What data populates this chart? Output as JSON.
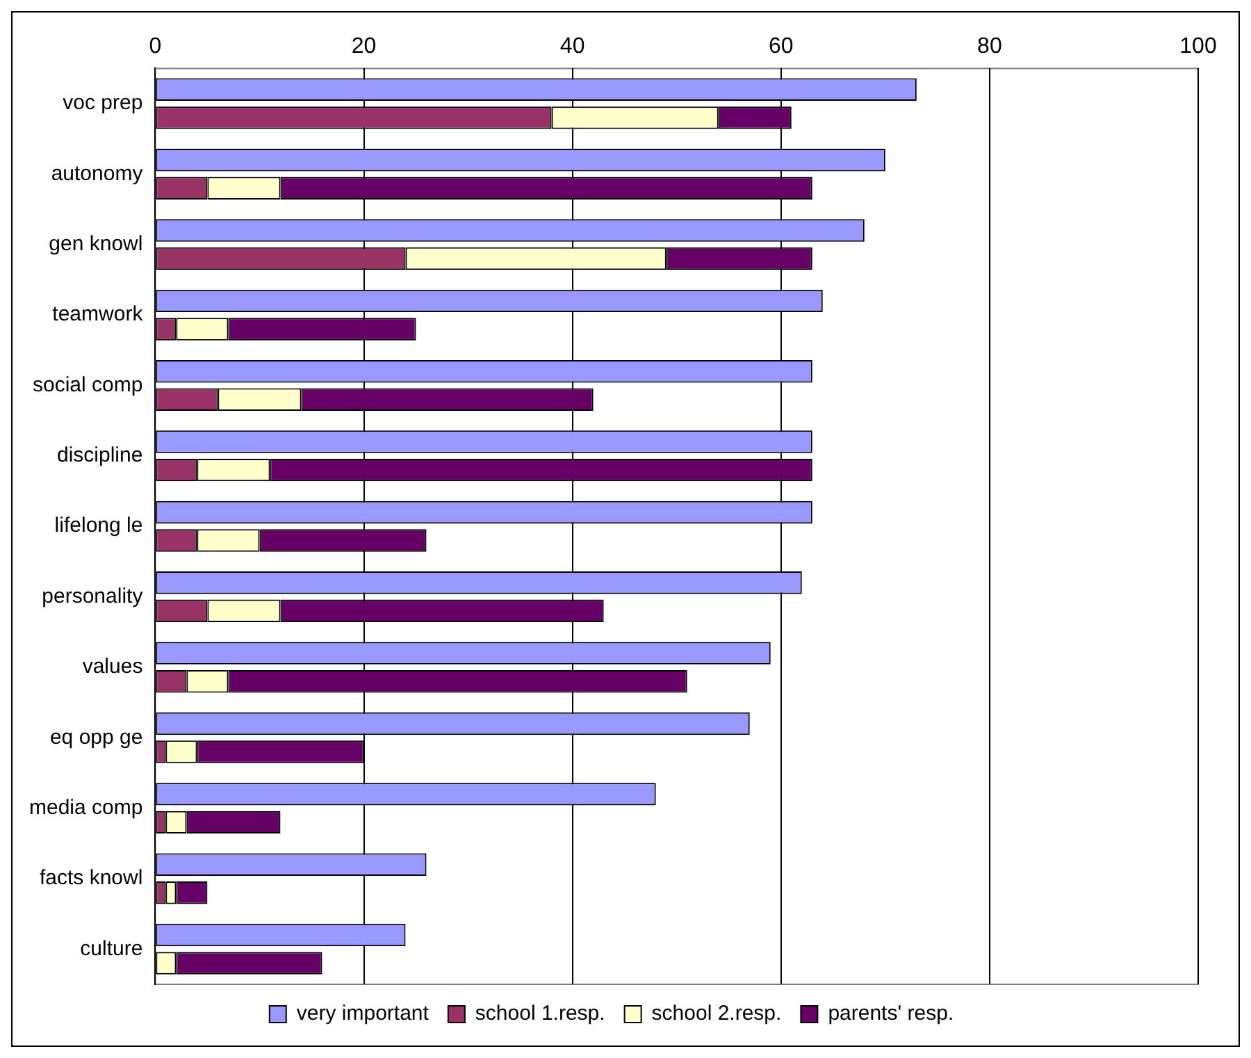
{
  "chart_data": {
    "type": "bar",
    "orientation": "horizontal",
    "categories": [
      "voc prep",
      "autonomy",
      "gen knowl",
      "teamwork",
      "social comp",
      "discipline",
      "lifelong le",
      "personality",
      "values",
      "eq opp ge",
      "media comp",
      "facts knowl",
      "culture"
    ],
    "series": [
      {
        "name": "very important",
        "color": "#9999ff",
        "values": [
          73,
          70,
          68,
          64,
          63,
          63,
          63,
          62,
          59,
          57,
          48,
          26,
          24
        ]
      },
      {
        "name": "school 1.resp.",
        "color": "#993366",
        "base": [
          0,
          0,
          0,
          0,
          0,
          0,
          0,
          0,
          0,
          0,
          0,
          0,
          null
        ],
        "values": [
          38,
          5,
          24,
          2,
          6,
          4,
          4,
          5,
          3,
          1,
          1,
          1,
          null
        ]
      },
      {
        "name": "school 2.resp.",
        "color": "#ffffcc",
        "base": [
          38,
          5,
          24,
          2,
          6,
          4,
          4,
          5,
          3,
          1,
          1,
          1,
          0
        ],
        "values": [
          16,
          7,
          25,
          5,
          8,
          7,
          6,
          7,
          4,
          3,
          2,
          1,
          2
        ]
      },
      {
        "name": "parents' resp.",
        "color": "#660066",
        "base": [
          54,
          12,
          49,
          7,
          14,
          11,
          10,
          12,
          7,
          4,
          3,
          2,
          2
        ],
        "values": [
          7,
          51,
          14,
          18,
          28,
          52,
          16,
          31,
          44,
          16,
          9,
          3,
          14
        ]
      }
    ],
    "xlim": [
      0,
      100
    ],
    "xticks": [
      0,
      20,
      40,
      60,
      80,
      100
    ],
    "grid": "x",
    "legend": "bottom"
  }
}
